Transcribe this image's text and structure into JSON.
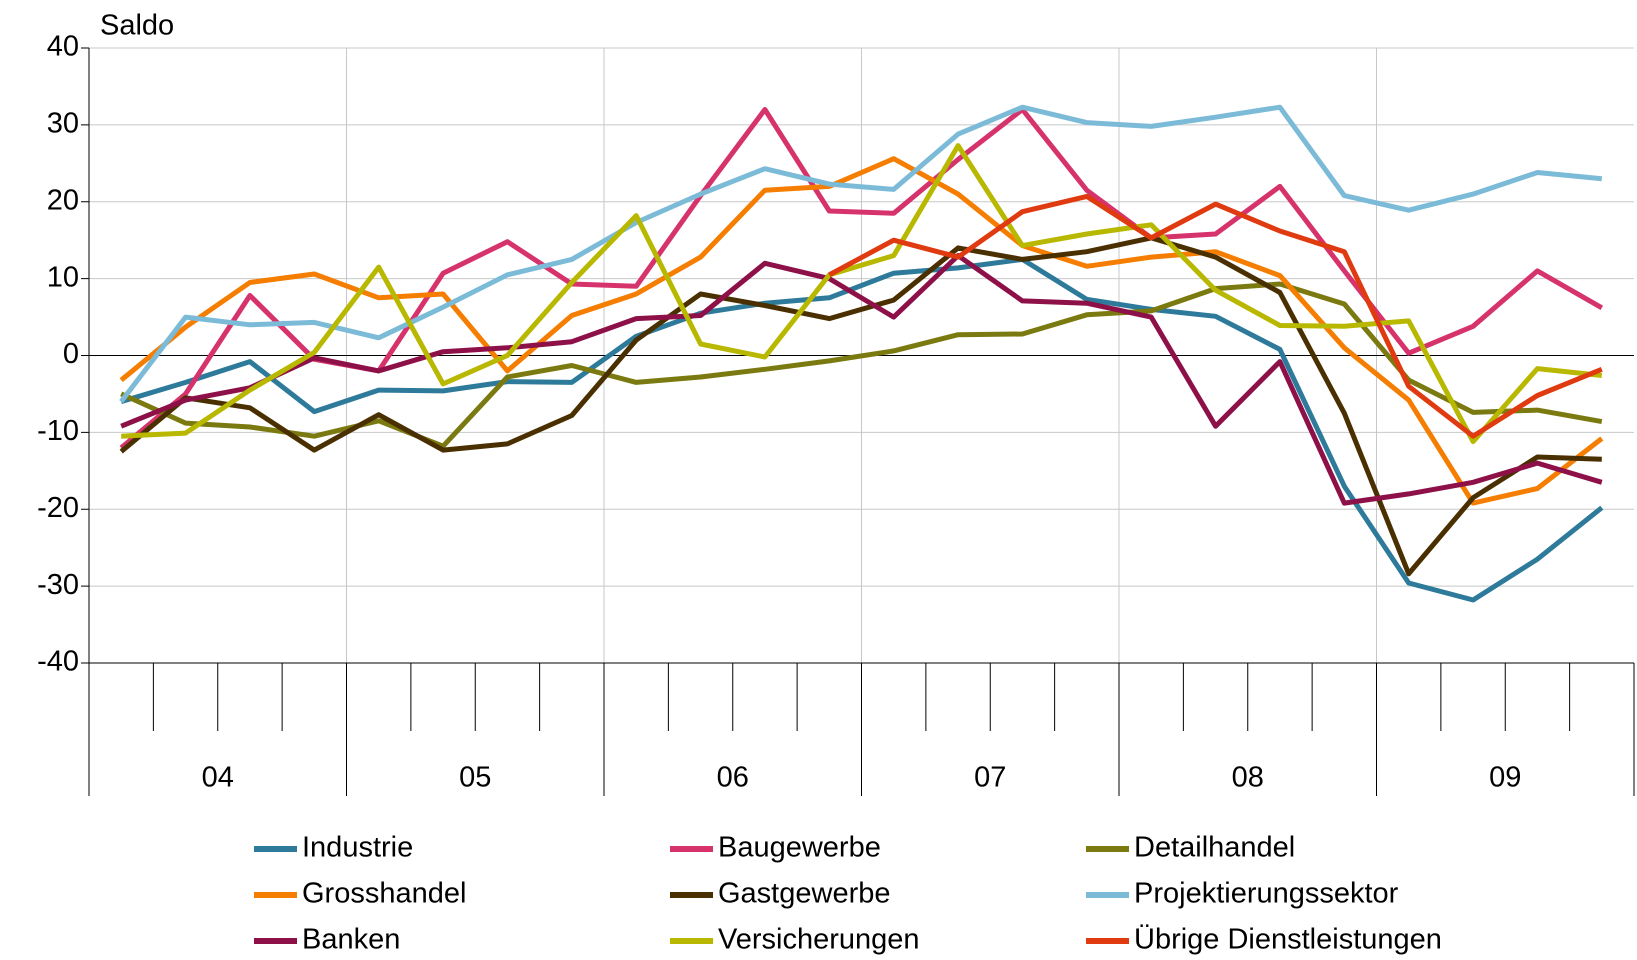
{
  "chart_data": {
    "type": "line",
    "y_label": "Saldo",
    "categories": [
      null,
      null,
      null,
      null,
      null,
      null,
      null,
      null,
      null,
      null,
      null,
      null,
      null,
      null,
      null,
      null,
      null,
      null,
      null,
      null,
      null,
      null,
      null,
      null
    ],
    "groups": [
      "04",
      "05",
      "06",
      "07",
      "08",
      "09"
    ],
    "ylim": [
      -40,
      40
    ],
    "yticks": [
      -40,
      -30,
      -20,
      -10,
      0,
      10,
      20,
      30,
      40
    ],
    "grid": true,
    "series": [
      {
        "name": "Industrie",
        "color": "#2e7a9a",
        "values": [
          -6,
          -3.5,
          -0.8,
          -7.3,
          -4.5,
          -4.6,
          -3.4,
          -3.5,
          2.5,
          5.5,
          6.8,
          7.5,
          10.7,
          11.4,
          12.5,
          7.3,
          6,
          5.1,
          0.8,
          -17,
          -29.6,
          -31.8,
          -26.5,
          -19.8
        ]
      },
      {
        "name": "Baugewerbe",
        "color": "#d6336c",
        "values": [
          -12,
          -5,
          7.8,
          -0.5,
          -2,
          10.7,
          14.8,
          9.3,
          9,
          20.8,
          32,
          18.8,
          18.5,
          25.5,
          32,
          21.5,
          15.3,
          15.8,
          22,
          11,
          0.3,
          3.8,
          11,
          6.2
        ]
      },
      {
        "name": "Detailhandel",
        "color": "#7a7a10",
        "values": [
          -5,
          -8.8,
          -9.3,
          -10.5,
          -8.5,
          -11.8,
          -2.8,
          -1.3,
          -3.5,
          -2.8,
          -1.8,
          -0.7,
          0.6,
          2.7,
          2.8,
          5.3,
          5.8,
          8.7,
          9.3,
          6.7,
          -3.2,
          -7.4,
          -7.1,
          -8.6
        ]
      },
      {
        "name": "Grosshandel",
        "color": "#f57d00",
        "values": [
          -3.2,
          3.7,
          9.5,
          10.6,
          7.5,
          8,
          -2,
          5.2,
          8,
          12.8,
          21.5,
          22,
          25.6,
          21,
          14.3,
          11.6,
          12.8,
          13.5,
          10.4,
          1,
          -5.8,
          -19.2,
          -17.3,
          -10.8
        ]
      },
      {
        "name": "Gastgewerbe",
        "color": "#4a3000",
        "values": [
          -12.5,
          -5.5,
          -6.8,
          -12.3,
          -7.7,
          -12.3,
          -11.5,
          -7.8,
          2,
          8,
          6.5,
          4.8,
          7.2,
          14,
          12.5,
          13.5,
          15.3,
          12.8,
          8.2,
          -7.5,
          -28.4,
          -18.5,
          -13.2,
          -13.5
        ]
      },
      {
        "name": "Projektierungssektor",
        "color": "#7bbbd8",
        "values": [
          -6,
          5,
          4,
          4.3,
          2.3,
          6.3,
          10.5,
          12.5,
          17.3,
          21,
          24.3,
          22.3,
          21.6,
          28.8,
          32.3,
          30.3,
          29.8,
          31,
          32.3,
          20.8,
          18.9,
          21,
          23.8,
          23
        ]
      },
      {
        "name": "Banken",
        "color": "#8e1048",
        "values": [
          -9.2,
          -5.8,
          -4.2,
          -0.3,
          -2,
          0.5,
          1,
          1.8,
          4.8,
          5.2,
          12,
          10,
          5,
          13,
          7.1,
          6.8,
          5,
          -9.2,
          -0.8,
          -19.2,
          -18,
          -16.5,
          -14,
          -16.5
        ]
      },
      {
        "name": "Versicherungen",
        "color": "#b8b800",
        "values": [
          -10.5,
          -10.1,
          -4.5,
          0.4,
          11.5,
          -3.7,
          0,
          9.5,
          18.2,
          1.5,
          -0.2,
          10.5,
          13,
          27.3,
          14.3,
          15.8,
          17,
          8.5,
          3.9,
          3.8,
          4.5,
          -11.2,
          -1.7,
          -2.6
        ]
      },
      {
        "name": "Übrige Dienstleistungen",
        "color": "#e03a10",
        "values": [
          null,
          null,
          null,
          null,
          null,
          null,
          null,
          null,
          null,
          null,
          null,
          10.5,
          15,
          12.8,
          18.7,
          20.7,
          15.3,
          19.7,
          16.2,
          13.5,
          -4,
          -10.5,
          -5.2,
          -1.8
        ]
      }
    ]
  }
}
